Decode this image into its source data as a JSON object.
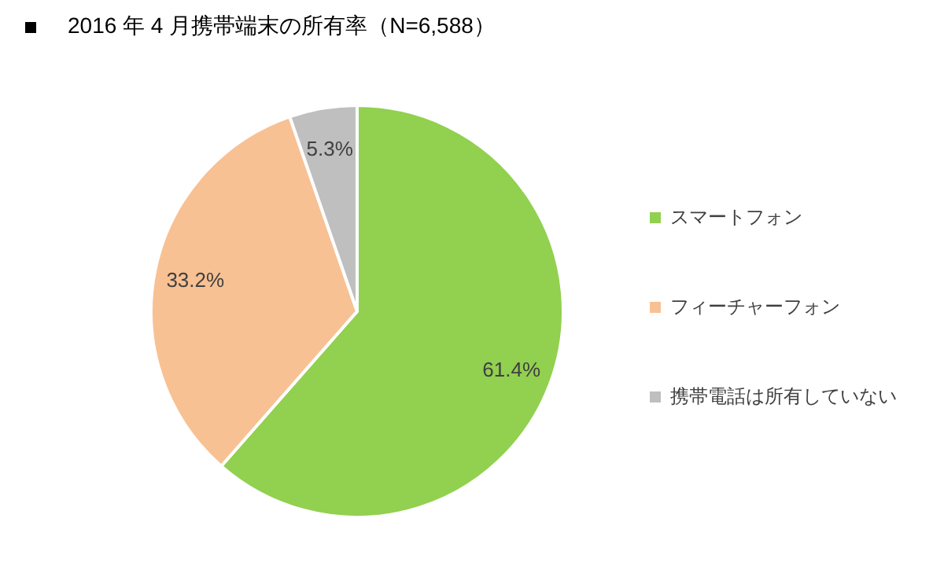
{
  "chart_data": {
    "type": "pie",
    "title": "2016 年 4 月携帯端末の所有率（N=6,588）",
    "categories": [
      "スマートフォン",
      "フィーチャーフォン",
      "携帯電話は所有していない"
    ],
    "values": [
      61.4,
      33.2,
      5.3
    ],
    "colors": [
      "#92d050",
      "#f8c193",
      "#bfbfbf"
    ],
    "value_labels": [
      "61.4%",
      "33.2%",
      "5.3%"
    ],
    "legend": "right"
  }
}
